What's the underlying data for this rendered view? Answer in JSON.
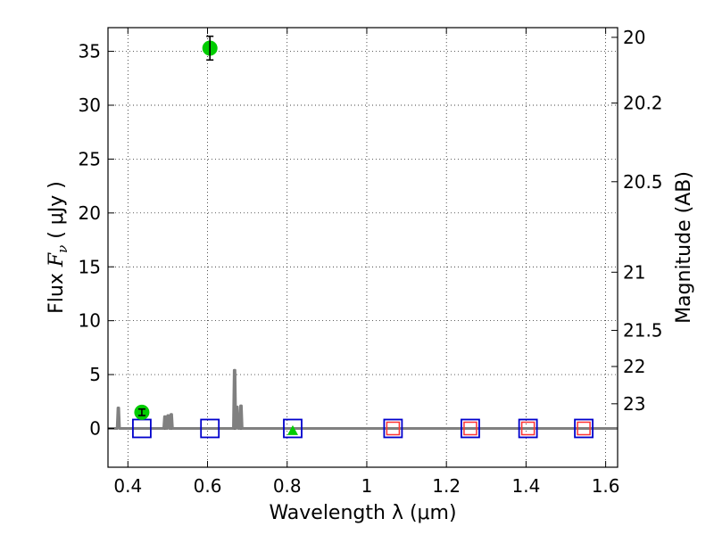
{
  "chart_data": {
    "type": "scatter",
    "xlabel": "Wavelength  λ (μm)",
    "ylabel_prefix": "Flux  ",
    "ylabel_symbol": "F",
    "ylabel_subscript": "ν",
    "ylabel_unit": "  ( μJy )",
    "y2label": "Magnitude (AB)",
    "xlim": [
      0.35,
      1.63
    ],
    "ylim": [
      -3.6,
      37.2
    ],
    "grid": true,
    "x_ticks": [
      0.4,
      0.6,
      0.8,
      1.0,
      1.2,
      1.4,
      1.6
    ],
    "x_tick_labels": [
      "0.4",
      "0.6",
      "0.8",
      "1",
      "1.2",
      "1.4",
      "1.6"
    ],
    "y_ticks": [
      0,
      5,
      10,
      15,
      20,
      25,
      30,
      35
    ],
    "y_tick_labels": [
      "0",
      "5",
      "10",
      "15",
      "20",
      "25",
      "30",
      "35"
    ],
    "y2_ticks": [
      {
        "label": "20",
        "flux": 36.3
      },
      {
        "label": "20.2",
        "flux": 30.2
      },
      {
        "label": "20.5",
        "flux": 22.9
      },
      {
        "label": "21",
        "flux": 14.5
      },
      {
        "label": "21.5",
        "flux": 9.1
      },
      {
        "label": "22",
        "flux": 5.75
      },
      {
        "label": "23",
        "flux": 2.29
      }
    ],
    "series": [
      {
        "marker": "model-spectrum",
        "color": "#808080",
        "x": [
          0.35,
          0.373,
          0.375,
          0.377,
          0.379,
          0.381,
          0.42,
          0.49,
          0.492,
          0.494,
          0.496,
          0.498,
          0.5,
          0.502,
          0.504,
          0.506,
          0.508,
          0.51,
          0.512,
          0.514,
          0.6,
          0.665,
          0.667,
          0.669,
          0.671,
          0.673,
          0.675,
          0.677,
          0.679,
          0.681,
          0.683,
          0.685,
          0.687,
          0.689,
          1.0,
          1.63
        ],
        "y": [
          0.0,
          0.0,
          1.9,
          1.9,
          0.0,
          0.0,
          0.0,
          0.0,
          1.1,
          1.1,
          0.0,
          0.0,
          1.2,
          1.2,
          0.0,
          0.0,
          1.3,
          1.3,
          0.0,
          0.0,
          0.0,
          0.0,
          5.4,
          5.4,
          0.0,
          2.0,
          2.0,
          0.0,
          0.0,
          0.0,
          2.1,
          2.1,
          0.0,
          0.0,
          0.0,
          0.0
        ]
      },
      {
        "marker": "observed",
        "color": "#00cc00",
        "x": [
          0.435,
          0.606
        ],
        "y": [
          1.5,
          35.3
        ],
        "yerr": [
          0.3,
          1.1
        ]
      },
      {
        "marker": "upper-limit",
        "color": "#00cc00",
        "x": [
          0.814
        ],
        "y": [
          -0.2
        ]
      },
      {
        "marker": "model-photometry",
        "color": "#0000cc",
        "x": [
          0.435,
          0.606,
          0.814,
          1.066,
          1.26,
          1.405,
          1.545
        ],
        "y": [
          0.0,
          0.0,
          0.0,
          0.0,
          0.0,
          0.0,
          0.0
        ]
      },
      {
        "marker": "nir-band",
        "color": "#ff3333",
        "x": [
          1.066,
          1.26,
          1.405,
          1.545
        ],
        "y": [
          0.0,
          0.0,
          0.0,
          0.0
        ]
      }
    ]
  }
}
